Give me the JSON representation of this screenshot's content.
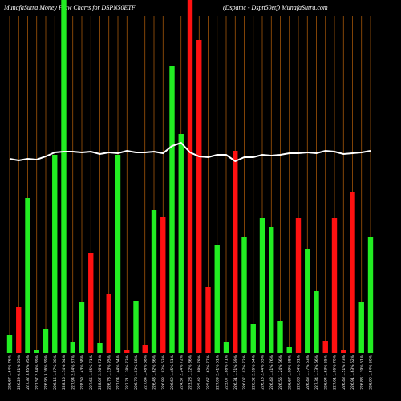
{
  "chart_data": {
    "type": "bar",
    "title": "MunafaSutra  Money Flow  Charts for DSPN50ETF",
    "subtitle": "(Dspamc -  Dspn50etf) MunafaSutra.com",
    "categories": [
      "226.67 1.64% 76%",
      "226.29 0.81% 55%",
      "227.32 3.65% 95%",
      "227.57 2.84% 89%",
      "226.96 3.36% 89%",
      "226.15 1.07% 80%",
      "228.15 1.74% 64%",
      "227.94 2.04% 87%",
      "228.59 1.43% 68%",
      "227.65 1.05% 71%",
      "228.07 2.36% 72%",
      "226.73 1.13% 95%",
      "227.04 1.44% 64%",
      "227.71 1.38% 73%",
      "226.78 1.03% 58%",
      "227.84 1.48% 68%",
      "226.43 1.62% 86%",
      "226.88 1.92% 63%",
      "226.69 1.45% 61%",
      "224.57 2.24% 72%",
      "223.28 1.12% 86%",
      "225.42 1.88% 78%",
      "225.67 1.62% 77%",
      "227.09 2.41% 61%",
      "225.07 1.88% 71%",
      "226.31 1.51% 59%",
      "226.07 1.07% 72%",
      "226.32 2.16% 64%",
      "226.13 2.44% 65%",
      "226.48 1.41% 76%",
      "226.55 1.24% 66%",
      "226.67 1.09% 68%",
      "226.08 1.54% 81%",
      "226.43 1.77% 63%",
      "227.34 1.73% 66%",
      "226.94 1.63% 65%",
      "227.61 1.06% 70%",
      "226.48 1.51% 73%",
      "226.91 1.63% 62%",
      "226.88 1.39% 61%",
      "226.90 1.84% 60%"
    ],
    "values": [
      22,
      57,
      193,
      3,
      30,
      247,
      460,
      13,
      64,
      124,
      12,
      74,
      247,
      3,
      65,
      10,
      178,
      170,
      358,
      273,
      460,
      390,
      82,
      134,
      13,
      252,
      145,
      36,
      168,
      157,
      40,
      7,
      168,
      130,
      77,
      15,
      168,
      3,
      200,
      63,
      145
    ],
    "bar_colors": [
      "#22ee22",
      "#ff1111",
      "#22ee22",
      "#22ee22",
      "#22ee22",
      "#22ee22",
      "#22ee22",
      "#22ee22",
      "#22ee22",
      "#ff1111",
      "#22ee22",
      "#ff1111",
      "#22ee22",
      "#ff1111",
      "#22ee22",
      "#ff1111",
      "#22ee22",
      "#ff1111",
      "#22ee22",
      "#22ee22",
      "#ff1111",
      "#ff1111",
      "#ff1111",
      "#22ee22",
      "#22ee22",
      "#ff1111",
      "#22ee22",
      "#22ee22",
      "#22ee22",
      "#22ee22",
      "#22ee22",
      "#22ee22",
      "#ff1111",
      "#22ee22",
      "#22ee22",
      "#ff1111",
      "#ff1111",
      "#ff1111",
      "#ff1111",
      "#22ee22",
      "#22ee22"
    ],
    "line_values": [
      242,
      240,
      242,
      241,
      245,
      250,
      251,
      251,
      250,
      251,
      248,
      250,
      249,
      252,
      250,
      250,
      251,
      249,
      258,
      262,
      250,
      245,
      244,
      247,
      247,
      239,
      244,
      244,
      247,
      246,
      247,
      249,
      249,
      250,
      249,
      252,
      251,
      248,
      249,
      250,
      252
    ],
    "line_color": "#ffffff",
    "grid_color": "#b8600b",
    "ylim": [
      0,
      440
    ]
  }
}
